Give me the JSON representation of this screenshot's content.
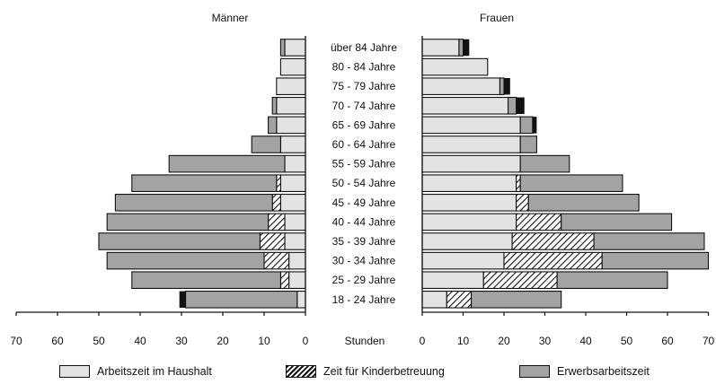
{
  "chart_data": {
    "type": "bar",
    "subtype": "population-pyramid-stacked-horizontal",
    "panel_titles": {
      "left": "Männer",
      "right": "Frauen"
    },
    "center_axis_label": "Stunden",
    "categories": [
      "über 84 Jahre",
      "80 - 84 Jahre",
      "75 - 79 Jahre",
      "70 - 74 Jahre",
      "65 - 69 Jahre",
      "60 - 64 Jahre",
      "55 - 59 Jahre",
      "50 - 54 Jahre",
      "45 - 49 Jahre",
      "40 - 44 Jahre",
      "35 - 39 Jahre",
      "30 - 34 Jahre",
      "25 - 29 Jahre",
      "18 - 24 Jahre"
    ],
    "xlim": [
      0,
      70
    ],
    "x_ticks": [
      0,
      10,
      20,
      30,
      40,
      50,
      60,
      70
    ],
    "series_names": [
      "Arbeitszeit im Haushalt",
      "Zeit für Kinderbetreuung",
      "Erwerbsarbeitszeit"
    ],
    "series_colors": [
      "#e3e3e3",
      "hatched",
      "#a3a3a3"
    ],
    "men": {
      "haushalt": [
        5,
        6,
        7,
        7,
        7,
        6,
        5,
        6,
        6,
        5,
        5,
        4,
        4,
        2
      ],
      "kinder": [
        0,
        0,
        0,
        0,
        0,
        0,
        0,
        1,
        2,
        4,
        6,
        6,
        2,
        0
      ],
      "erwerb": [
        1,
        0,
        0,
        1,
        2,
        7,
        28,
        35,
        38,
        39,
        39,
        38,
        36,
        27
      ],
      "edge_marks": [
        0,
        0,
        0,
        0,
        0,
        0,
        0,
        0,
        0,
        0,
        0,
        0,
        0,
        1.5
      ]
    },
    "women": {
      "haushalt": [
        9,
        16,
        19,
        21,
        24,
        24,
        24,
        23,
        23,
        23,
        22,
        20,
        15,
        6
      ],
      "kinder": [
        0,
        0,
        0,
        0,
        0,
        0,
        0,
        1,
        3,
        11,
        20,
        24,
        18,
        6
      ],
      "erwerb": [
        1,
        0,
        1,
        2,
        3,
        4,
        12,
        25,
        27,
        27,
        27,
        26,
        27,
        22
      ],
      "edge_marks": [
        1.5,
        0,
        1.5,
        2,
        1,
        0,
        0,
        0,
        0,
        0,
        0,
        0,
        0,
        0
      ]
    }
  },
  "legend": [
    {
      "label": "Arbeitszeit im Haushalt"
    },
    {
      "label": "Zeit für Kinderbetreuung"
    },
    {
      "label": "Erwerbsarbeitszeit"
    }
  ]
}
